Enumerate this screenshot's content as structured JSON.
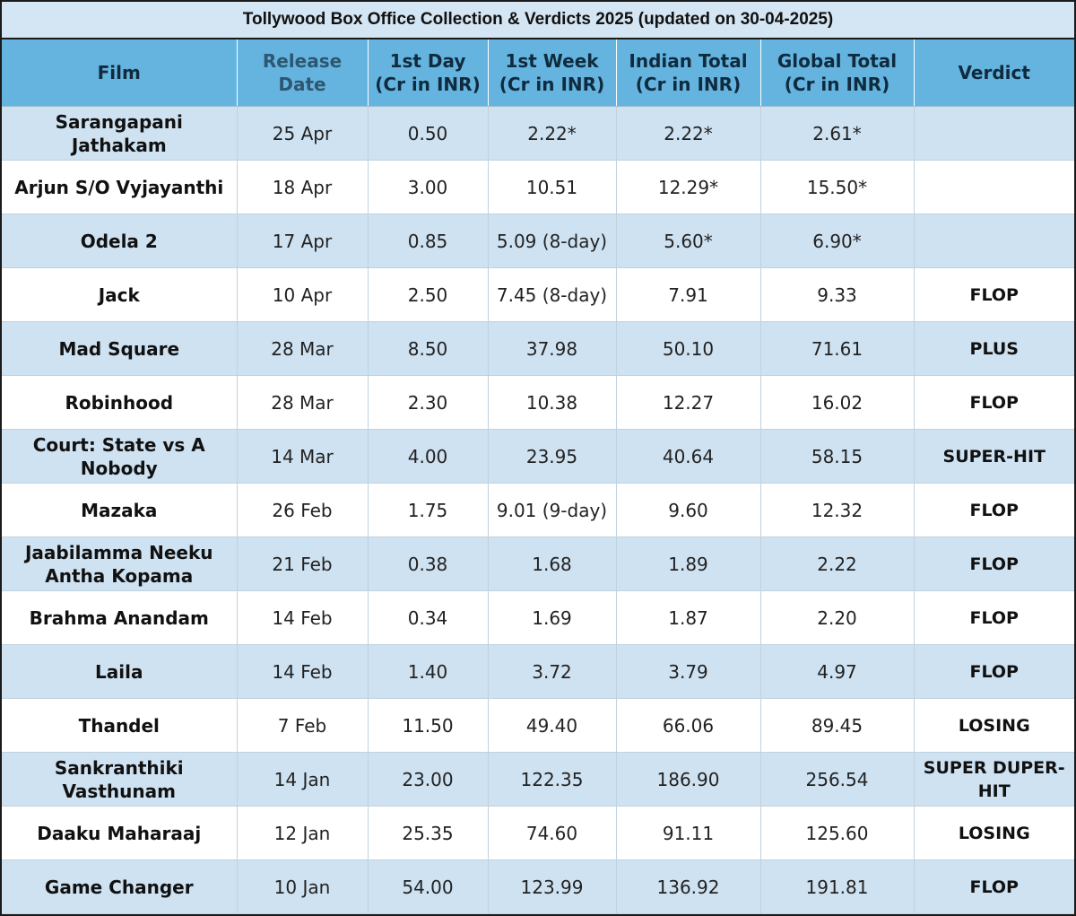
{
  "chart_data": {
    "type": "table",
    "title": "Tollywood Box Office Collection & Verdicts 2025 (updated on 30-04-2025)",
    "columns": [
      "Film",
      "Release Date",
      "1st Day (Cr in INR)",
      "1st Week (Cr in INR)",
      "Indian Total (Cr in INR)",
      "Global Total (Cr in INR)",
      "Verdict"
    ],
    "rows": [
      [
        "Sarangapani Jathakam",
        "25 Apr",
        "0.50",
        "2.22*",
        "2.22*",
        "2.61*",
        ""
      ],
      [
        "Arjun S/O Vyjayanthi",
        "18 Apr",
        "3.00",
        "10.51",
        "12.29*",
        "15.50*",
        ""
      ],
      [
        "Odela 2",
        "17 Apr",
        "0.85",
        "5.09 (8-day)",
        "5.60*",
        "6.90*",
        ""
      ],
      [
        "Jack",
        "10 Apr",
        "2.50",
        "7.45 (8-day)",
        "7.91",
        "9.33",
        "FLOP"
      ],
      [
        "Mad Square",
        "28 Mar",
        "8.50",
        "37.98",
        "50.10",
        "71.61",
        "PLUS"
      ],
      [
        "Robinhood",
        "28 Mar",
        "2.30",
        "10.38",
        "12.27",
        "16.02",
        "FLOP"
      ],
      [
        "Court: State vs A Nobody",
        "14 Mar",
        "4.00",
        "23.95",
        "40.64",
        "58.15",
        "SUPER-HIT"
      ],
      [
        "Mazaka",
        "26 Feb",
        "1.75",
        "9.01 (9-day)",
        "9.60",
        "12.32",
        "FLOP"
      ],
      [
        "Jaabilamma Neeku Antha Kopama",
        "21 Feb",
        "0.38",
        "1.68",
        "1.89",
        "2.22",
        "FLOP"
      ],
      [
        "Brahma Anandam",
        "14 Feb",
        "0.34",
        "1.69",
        "1.87",
        "2.20",
        "FLOP"
      ],
      [
        "Laila",
        "14 Feb",
        "1.40",
        "3.72",
        "3.79",
        "4.97",
        "FLOP"
      ],
      [
        "Thandel",
        "7 Feb",
        "11.50",
        "49.40",
        "66.06",
        "89.45",
        "LOSING"
      ],
      [
        "Sankranthiki Vasthunam",
        "14 Jan",
        "23.00",
        "122.35",
        "186.90",
        "256.54",
        "SUPER DUPER-HIT"
      ],
      [
        "Daaku Maharaaj",
        "12 Jan",
        "25.35",
        "74.60",
        "91.11",
        "125.60",
        "LOSING"
      ],
      [
        "Game Changer",
        "10 Jan",
        "54.00",
        "123.99",
        "136.92",
        "191.81",
        "FLOP"
      ]
    ]
  },
  "colors": {
    "header_bg": "#64b4df",
    "title_bg": "#d4e5f3",
    "row_alt_bg": "#cfe2f1",
    "row_bg": "#ffffff"
  }
}
